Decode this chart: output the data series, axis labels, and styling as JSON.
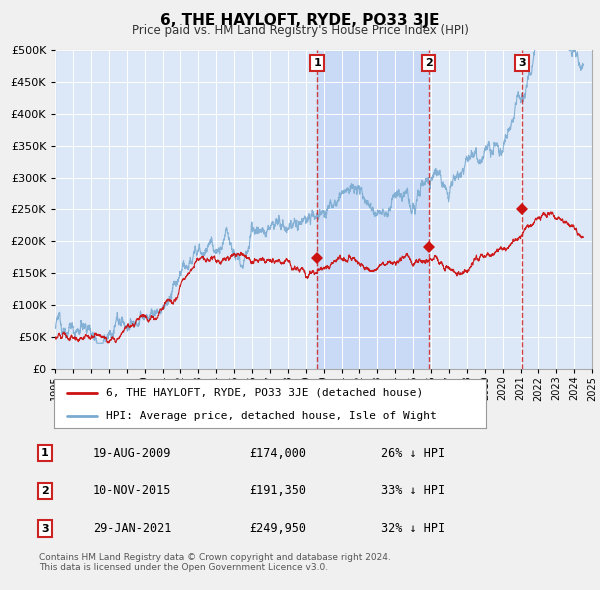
{
  "title": "6, THE HAYLOFT, RYDE, PO33 3JE",
  "subtitle": "Price paid vs. HM Land Registry's House Price Index (HPI)",
  "legend_label_red": "6, THE HAYLOFT, RYDE, PO33 3JE (detached house)",
  "legend_label_blue": "HPI: Average price, detached house, Isle of Wight",
  "footer_line1": "Contains HM Land Registry data © Crown copyright and database right 2024.",
  "footer_line2": "This data is licensed under the Open Government Licence v3.0.",
  "transactions": [
    {
      "num": 1,
      "date": "19-AUG-2009",
      "price": "£174,000",
      "pct": "26% ↓ HPI",
      "year": 2009.63
    },
    {
      "num": 2,
      "date": "10-NOV-2015",
      "price": "£191,350",
      "pct": "33% ↓ HPI",
      "year": 2015.86
    },
    {
      "num": 3,
      "date": "29-JAN-2021",
      "price": "£249,950",
      "pct": "32% ↓ HPI",
      "year": 2021.08
    }
  ],
  "transaction_values": [
    174000,
    191350,
    249950
  ],
  "fig_bg_color": "#f0f0f0",
  "plot_bg_color": "#dce8f8",
  "plot_bg_highlight": "#c8daf5",
  "red_color": "#cc1111",
  "blue_color": "#7aaad0",
  "grid_color": "#ffffff",
  "vline_color": "#cc2222",
  "marker_color": "#cc1111",
  "xmin": 1995,
  "xmax": 2025,
  "ymin": 0,
  "ymax": 500000,
  "yticks": [
    0,
    50000,
    100000,
    150000,
    200000,
    250000,
    300000,
    350000,
    400000,
    450000,
    500000
  ]
}
